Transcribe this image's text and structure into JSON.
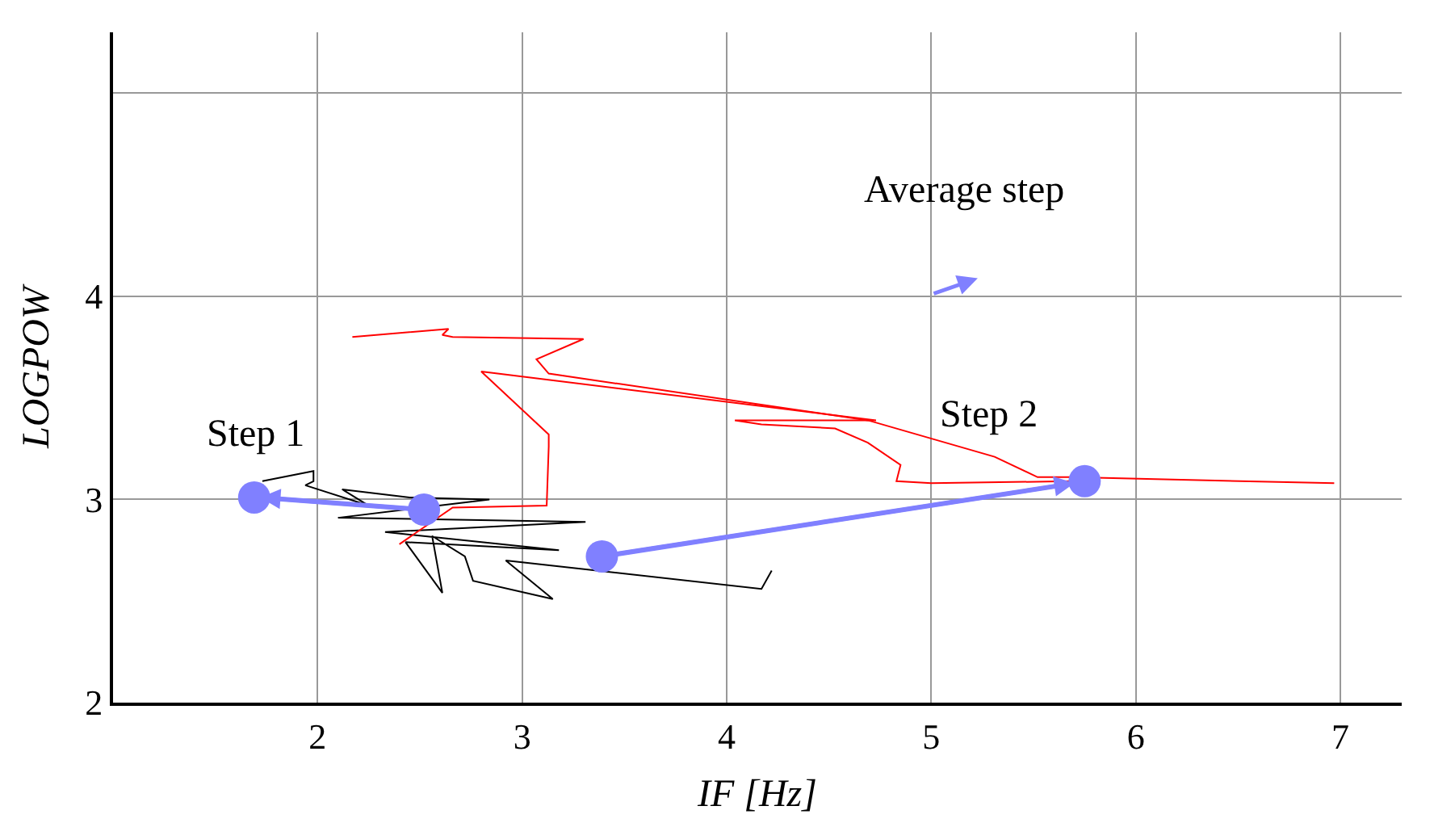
{
  "chart_data": {
    "type": "line",
    "xlabel": "IF [Hz]",
    "ylabel": "LOGPOW",
    "xlim": [
      1,
      7.3
    ],
    "ylim": [
      2,
      5.3
    ],
    "xticks": [
      {
        "value": 1,
        "label": null
      },
      2,
      3,
      4,
      5,
      6,
      7
    ],
    "yticks": [
      2,
      3,
      4,
      {
        "value": 5,
        "label": null
      }
    ],
    "grid": true,
    "marker": "none",
    "series": [
      {
        "color": "#000000",
        "x": [
          1.73,
          1.98,
          1.98,
          1.94,
          2.25,
          2.12,
          2.45,
          2.84,
          2.1,
          3.31,
          2.33,
          3.18,
          2.43,
          2.61,
          2.56,
          2.72,
          2.76,
          3.15,
          2.92,
          3.39,
          4.17,
          4.22
        ],
        "values": [
          3.09,
          3.14,
          3.09,
          3.07,
          2.97,
          3.05,
          3.01,
          3.0,
          2.91,
          2.89,
          2.84,
          2.75,
          2.79,
          2.54,
          2.82,
          2.72,
          2.6,
          2.51,
          2.7,
          null,
          2.56,
          2.65
        ]
      },
      {
        "color": "#ff0000",
        "x": [
          2.17,
          2.64,
          2.61,
          2.66,
          3.3,
          3.07,
          3.13,
          4.69,
          5.31,
          5.52,
          5.68,
          6.97
        ],
        "values": [
          3.8,
          3.84,
          3.81,
          3.8,
          3.79,
          3.69,
          3.62,
          3.39,
          3.21,
          3.11,
          3.11,
          3.08
        ]
      },
      {
        "color": "#ff0000",
        "x": [
          2.4,
          2.66,
          3.12,
          3.13,
          3.13,
          2.8,
          4.73,
          4.04,
          4.17,
          4.53,
          4.69,
          4.85,
          4.83,
          5.0,
          5.68
        ],
        "values": [
          2.78,
          2.96,
          2.97,
          3.26,
          3.32,
          3.63,
          3.39,
          3.39,
          3.37,
          3.35,
          3.28,
          3.17,
          3.09,
          3.08,
          3.09
        ]
      },
      {
        "color": "#8080ff",
        "x": [
          2.52,
          1.72
        ],
        "values": [
          2.95,
          3.01
        ]
      },
      {
        "color": "#8080ff",
        "x": [
          3.39,
          5.7
        ],
        "values": [
          2.72,
          3.08
        ]
      },
      {
        "type": "scatter",
        "color": "#8080ff",
        "marker": "circle",
        "x": [
          1.69,
          2.52,
          3.39,
          5.75
        ],
        "values": [
          3.01,
          2.95,
          2.72,
          3.09
        ]
      }
    ],
    "annotations": [
      "Step 1",
      "Step 2",
      "Average step"
    ]
  }
}
